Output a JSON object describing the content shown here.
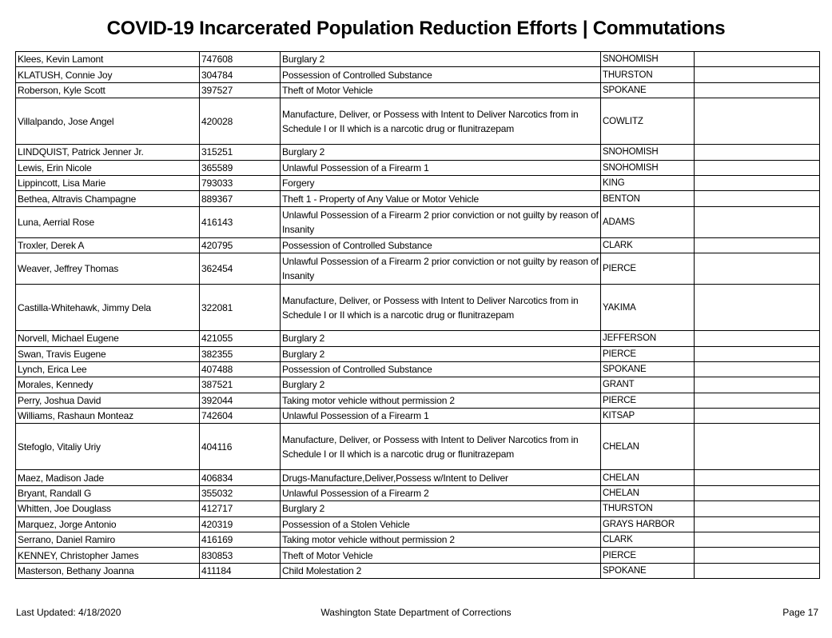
{
  "title": "COVID-19 Incarcerated Population Reduction Efforts | Commutations",
  "rows": [
    {
      "name": "Klees, Kevin Lamont",
      "doc": "747608",
      "offense": "Burglary 2",
      "county": "SNOHOMISH",
      "notes": ""
    },
    {
      "name": "KLATUSH, Connie Joy",
      "doc": "304784",
      "offense": "Possession of Controlled Substance",
      "county": "THURSTON",
      "notes": ""
    },
    {
      "name": "Roberson, Kyle Scott",
      "doc": "397527",
      "offense": "Theft of Motor Vehicle",
      "county": "SPOKANE",
      "notes": ""
    },
    {
      "name": "Villalpando, Jose Angel",
      "doc": "420028",
      "offense": "Manufacture, Deliver, or Possess with Intent to Deliver Narcotics from in Schedule I or II which is a narcotic drug or flunitrazepam",
      "county": "COWLITZ",
      "notes": ""
    },
    {
      "name": "LINDQUIST, Patrick Jenner Jr.",
      "doc": "315251",
      "offense": "Burglary 2",
      "county": "SNOHOMISH",
      "notes": ""
    },
    {
      "name": "Lewis, Erin Nicole",
      "doc": "365589",
      "offense": "Unlawful Possession of a Firearm 1",
      "county": "SNOHOMISH",
      "notes": ""
    },
    {
      "name": "Lippincott, Lisa Marie",
      "doc": "793033",
      "offense": "Forgery",
      "county": "KING",
      "notes": ""
    },
    {
      "name": "Bethea, Altravis Champagne",
      "doc": "889367",
      "offense": "Theft 1 - Property of Any Value or Motor Vehicle",
      "county": "BENTON",
      "notes": ""
    },
    {
      "name": "Luna, Aerrial Rose",
      "doc": "416143",
      "offense": "Unlawful Possession of a Firearm 2 prior conviction or not guilty by reason of Insanity",
      "county": "ADAMS",
      "notes": ""
    },
    {
      "name": "Troxler, Derek A",
      "doc": "420795",
      "offense": "Possession of Controlled Substance",
      "county": "CLARK",
      "notes": ""
    },
    {
      "name": "Weaver, Jeffrey Thomas",
      "doc": "362454",
      "offense": "Unlawful Possession of a Firearm 2 prior conviction or not guilty by reason of Insanity",
      "county": "PIERCE",
      "notes": ""
    },
    {
      "name": "Castilla-Whitehawk, Jimmy Dela",
      "doc": "322081",
      "offense": "Manufacture, Deliver, or Possess with Intent to Deliver Narcotics from in Schedule I or II which is a narcotic drug or flunitrazepam",
      "county": "YAKIMA",
      "notes": ""
    },
    {
      "name": "Norvell, Michael Eugene",
      "doc": "421055",
      "offense": "Burglary 2",
      "county": "JEFFERSON",
      "notes": ""
    },
    {
      "name": "Swan, Travis Eugene",
      "doc": "382355",
      "offense": "Burglary 2",
      "county": "PIERCE",
      "notes": ""
    },
    {
      "name": "Lynch, Erica Lee",
      "doc": "407488",
      "offense": "Possession of Controlled Substance",
      "county": "SPOKANE",
      "notes": ""
    },
    {
      "name": "Morales, Kennedy",
      "doc": "387521",
      "offense": "Burglary 2",
      "county": "GRANT",
      "notes": ""
    },
    {
      "name": "Perry, Joshua David",
      "doc": "392044",
      "offense": "Taking motor vehicle without permission 2",
      "county": "PIERCE",
      "notes": ""
    },
    {
      "name": "Williams, Rashaun Monteaz",
      "doc": "742604",
      "offense": "Unlawful Possession of a Firearm 1",
      "county": "KITSAP",
      "notes": ""
    },
    {
      "name": "Stefoglo, Vitaliy Uriy",
      "doc": "404116",
      "offense": "Manufacture, Deliver, or Possess with Intent to Deliver Narcotics from in Schedule I or II which is a narcotic drug or flunitrazepam",
      "county": "CHELAN",
      "notes": ""
    },
    {
      "name": "Maez, Madison Jade",
      "doc": "406834",
      "offense": "Drugs-Manufacture,Deliver,Possess w/Intent to Deliver",
      "county": "CHELAN",
      "notes": ""
    },
    {
      "name": "Bryant, Randall G",
      "doc": "355032",
      "offense": "Unlawful Possession of a Firearm 2",
      "county": "CHELAN",
      "notes": ""
    },
    {
      "name": "Whitten, Joe Douglass",
      "doc": "412717",
      "offense": "Burglary 2",
      "county": "THURSTON",
      "notes": ""
    },
    {
      "name": "Marquez, Jorge Antonio",
      "doc": "420319",
      "offense": "Possession of a Stolen Vehicle",
      "county": "GRAYS HARBOR",
      "notes": ""
    },
    {
      "name": "Serrano, Daniel Ramiro",
      "doc": "416169",
      "offense": "Taking motor vehicle without permission 2",
      "county": "CLARK",
      "notes": ""
    },
    {
      "name": "KENNEY, Christopher James",
      "doc": "830853",
      "offense": "Theft of Motor Vehicle",
      "county": "PIERCE",
      "notes": ""
    },
    {
      "name": "Masterson, Bethany Joanna",
      "doc": "411184",
      "offense": "Child Molestation 2",
      "county": "SPOKANE",
      "notes": ""
    }
  ],
  "footer": {
    "last_updated": "Last Updated: 4/18/2020",
    "agency": "Washington State Department of Corrections",
    "page": "Page 17"
  }
}
